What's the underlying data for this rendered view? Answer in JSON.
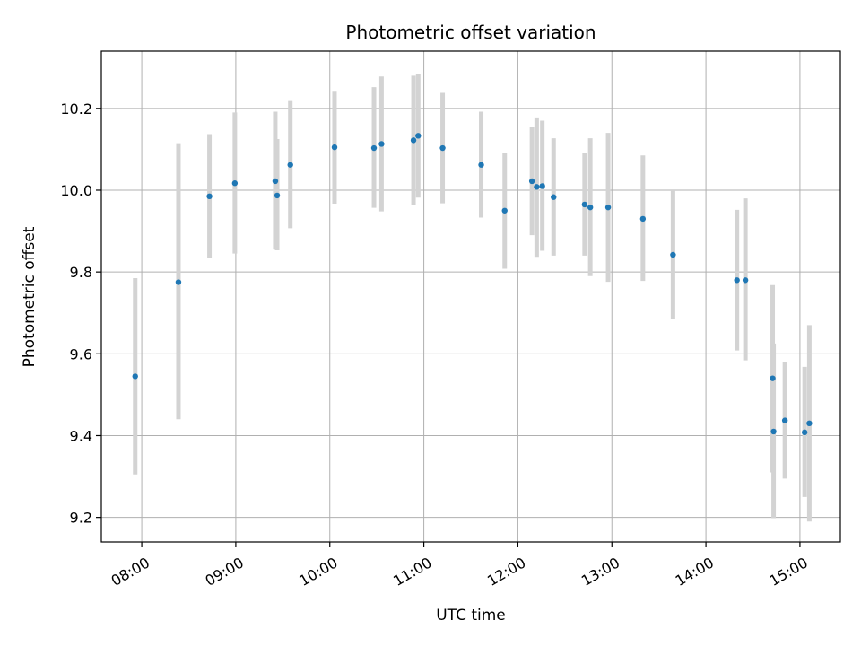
{
  "chart_data": {
    "type": "scatter",
    "title": "Photometric offset variation",
    "xlabel": "UTC time",
    "ylabel": "Photometric offset",
    "x_unit": "hours UTC",
    "xlim": [
      7.57,
      15.43
    ],
    "ylim": [
      9.14,
      10.34
    ],
    "x_ticks": [
      {
        "value": 8,
        "label": "08:00"
      },
      {
        "value": 9,
        "label": "09:00"
      },
      {
        "value": 10,
        "label": "10:00"
      },
      {
        "value": 11,
        "label": "11:00"
      },
      {
        "value": 12,
        "label": "12:00"
      },
      {
        "value": 13,
        "label": "13:00"
      },
      {
        "value": 14,
        "label": "14:00"
      },
      {
        "value": 15,
        "label": "15:00"
      }
    ],
    "y_ticks": [
      {
        "value": 9.2,
        "label": "9.2"
      },
      {
        "value": 9.4,
        "label": "9.4"
      },
      {
        "value": 9.6,
        "label": "9.6"
      },
      {
        "value": 9.8,
        "label": "9.8"
      },
      {
        "value": 10.0,
        "label": "10.0"
      },
      {
        "value": 10.2,
        "label": "10.2"
      }
    ],
    "grid": true,
    "marker_color": "#1f77b4",
    "errorbar_color": "#d3d3d3",
    "points": [
      {
        "x": 7.93,
        "y": 9.545,
        "lo": 9.305,
        "hi": 9.785
      },
      {
        "x": 8.39,
        "y": 9.775,
        "lo": 9.44,
        "hi": 10.115
      },
      {
        "x": 8.72,
        "y": 9.985,
        "lo": 9.835,
        "hi": 10.137
      },
      {
        "x": 8.99,
        "y": 10.017,
        "lo": 9.845,
        "hi": 10.19
      },
      {
        "x": 9.42,
        "y": 10.022,
        "lo": 9.855,
        "hi": 10.192
      },
      {
        "x": 9.44,
        "y": 9.987,
        "lo": 9.853,
        "hi": 10.125
      },
      {
        "x": 9.58,
        "y": 10.062,
        "lo": 9.907,
        "hi": 10.218
      },
      {
        "x": 10.05,
        "y": 10.105,
        "lo": 9.967,
        "hi": 10.243
      },
      {
        "x": 10.47,
        "y": 10.103,
        "lo": 9.957,
        "hi": 10.252
      },
      {
        "x": 10.55,
        "y": 10.113,
        "lo": 9.948,
        "hi": 10.278
      },
      {
        "x": 10.89,
        "y": 10.122,
        "lo": 9.963,
        "hi": 10.28
      },
      {
        "x": 10.94,
        "y": 10.133,
        "lo": 9.982,
        "hi": 10.285
      },
      {
        "x": 11.2,
        "y": 10.103,
        "lo": 9.968,
        "hi": 10.238
      },
      {
        "x": 11.61,
        "y": 10.062,
        "lo": 9.933,
        "hi": 10.192
      },
      {
        "x": 11.86,
        "y": 9.95,
        "lo": 9.808,
        "hi": 10.09
      },
      {
        "x": 12.15,
        "y": 10.022,
        "lo": 9.89,
        "hi": 10.155
      },
      {
        "x": 12.2,
        "y": 10.008,
        "lo": 9.837,
        "hi": 10.178
      },
      {
        "x": 12.26,
        "y": 10.01,
        "lo": 9.852,
        "hi": 10.17
      },
      {
        "x": 12.38,
        "y": 9.983,
        "lo": 9.84,
        "hi": 10.127
      },
      {
        "x": 12.71,
        "y": 9.965,
        "lo": 9.84,
        "hi": 10.09
      },
      {
        "x": 12.77,
        "y": 9.958,
        "lo": 9.79,
        "hi": 10.127
      },
      {
        "x": 12.96,
        "y": 9.958,
        "lo": 9.776,
        "hi": 10.14
      },
      {
        "x": 13.33,
        "y": 9.93,
        "lo": 9.778,
        "hi": 10.085
      },
      {
        "x": 13.65,
        "y": 9.842,
        "lo": 9.685,
        "hi": 10.0
      },
      {
        "x": 14.33,
        "y": 9.78,
        "lo": 9.608,
        "hi": 9.952
      },
      {
        "x": 14.42,
        "y": 9.78,
        "lo": 9.584,
        "hi": 9.98
      },
      {
        "x": 14.71,
        "y": 9.54,
        "lo": 9.31,
        "hi": 9.768
      },
      {
        "x": 14.72,
        "y": 9.41,
        "lo": 9.198,
        "hi": 9.625
      },
      {
        "x": 14.84,
        "y": 9.437,
        "lo": 9.295,
        "hi": 9.58
      },
      {
        "x": 15.05,
        "y": 9.408,
        "lo": 9.25,
        "hi": 9.568
      },
      {
        "x": 15.1,
        "y": 9.43,
        "lo": 9.19,
        "hi": 9.67
      }
    ]
  }
}
